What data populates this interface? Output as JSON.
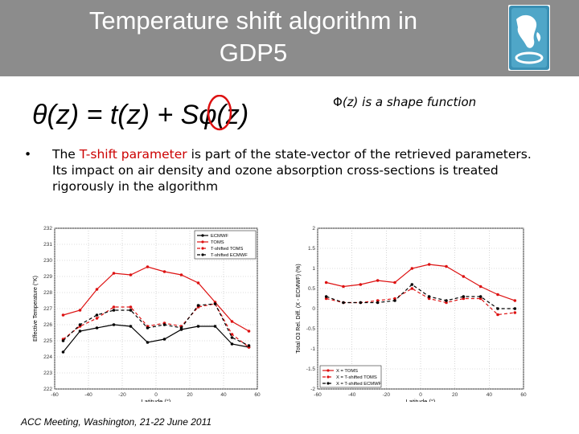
{
  "slide": {
    "title_line1": "Temperature shift algorithm in",
    "title_line2": "GDP5",
    "logo_icon": "globe-africa-logo-icon",
    "header_color": "#8c8c8c",
    "formula": "θ(z) = t(z) + Sφ(z)",
    "shape_note": "(z) is a shape function",
    "shape_note_symbol": "Φ",
    "bullet_prefix": "The ",
    "bullet_highlight": "T-shift parameter",
    "bullet_rest": " is part of the state-vector of the retrieved parameters. Its impact on air density and ozone absorption cross-sections is treated rigorously in the algorithm",
    "footer": "ACC Meeting, Washington, 21-22 June 2011"
  },
  "chart_data": [
    {
      "type": "line",
      "title": "",
      "xlabel": "Latitude (°)",
      "ylabel": "Effective Temperature (°K)",
      "xlim": [
        -60,
        60
      ],
      "ylim": [
        222,
        232
      ],
      "xticks": [
        -60,
        -40,
        -20,
        0,
        20,
        40,
        60
      ],
      "yticks": [
        222,
        223,
        224,
        225,
        226,
        227,
        228,
        229,
        230,
        231,
        232
      ],
      "legend_position": "top-right",
      "series": [
        {
          "name": "ECMWF",
          "color": "#000000",
          "dash": "",
          "x": [
            -55,
            -45,
            -35,
            -25,
            -15,
            -5,
            5,
            15,
            25,
            35,
            45,
            55
          ],
          "y": [
            224.3,
            225.6,
            225.8,
            226.0,
            225.9,
            224.9,
            225.1,
            225.7,
            225.9,
            225.9,
            224.8,
            224.6
          ]
        },
        {
          "name": "TOMS",
          "color": "#dd1111",
          "dash": "",
          "x": [
            -55,
            -45,
            -35,
            -25,
            -15,
            -5,
            5,
            15,
            25,
            35,
            45,
            55
          ],
          "y": [
            226.6,
            226.9,
            228.2,
            229.2,
            229.1,
            229.6,
            229.3,
            229.1,
            228.6,
            227.4,
            226.2,
            225.6
          ]
        },
        {
          "name": "T-shifted TOMS",
          "color": "#dd1111",
          "dash": "4,3",
          "x": [
            -55,
            -45,
            -35,
            -25,
            -15,
            -5,
            5,
            15,
            25,
            35,
            45,
            55
          ],
          "y": [
            225.1,
            225.9,
            226.4,
            227.1,
            227.1,
            225.9,
            226.1,
            225.9,
            227.1,
            227.3,
            225.4,
            224.6
          ]
        },
        {
          "name": "T-shifted ECMWF",
          "color": "#000000",
          "dash": "4,3",
          "x": [
            -55,
            -45,
            -35,
            -25,
            -15,
            -5,
            5,
            15,
            25,
            35,
            45,
            55
          ],
          "y": [
            225.0,
            226.0,
            226.6,
            226.9,
            226.9,
            225.8,
            226.0,
            225.8,
            227.2,
            227.3,
            225.2,
            224.7
          ]
        }
      ]
    },
    {
      "type": "line",
      "title": "",
      "xlabel": "Latitude (°)",
      "ylabel": "Total O3 Rel. Diff. (X - ECMWF) (%)",
      "xlim": [
        -60,
        60
      ],
      "ylim": [
        -2,
        2
      ],
      "xticks": [
        -60,
        -40,
        -20,
        0,
        20,
        40,
        60
      ],
      "yticks": [
        -2,
        -1.5,
        -1,
        -0.5,
        0,
        0.5,
        1,
        1.5,
        2
      ],
      "legend_position": "bottom-left",
      "series": [
        {
          "name": "X = TOMS",
          "color": "#dd1111",
          "dash": "",
          "x": [
            -55,
            -45,
            -35,
            -25,
            -15,
            -5,
            5,
            15,
            25,
            35,
            45,
            55
          ],
          "y": [
            0.65,
            0.55,
            0.6,
            0.7,
            0.65,
            1.0,
            1.1,
            1.05,
            0.8,
            0.55,
            0.35,
            0.2
          ]
        },
        {
          "name": "X = T-shifted TOMS",
          "color": "#dd1111",
          "dash": "4,3",
          "x": [
            -55,
            -45,
            -35,
            -25,
            -15,
            -5,
            5,
            15,
            25,
            35,
            45,
            55
          ],
          "y": [
            0.25,
            0.15,
            0.15,
            0.2,
            0.25,
            0.5,
            0.25,
            0.15,
            0.25,
            0.25,
            -0.15,
            -0.1
          ]
        },
        {
          "name": "X = T-shifted ECMWF",
          "color": "#000000",
          "dash": "4,3",
          "x": [
            -55,
            -45,
            -35,
            -25,
            -15,
            -5,
            5,
            15,
            25,
            35,
            45,
            55
          ],
          "y": [
            0.3,
            0.15,
            0.15,
            0.15,
            0.2,
            0.6,
            0.3,
            0.2,
            0.3,
            0.3,
            0.0,
            0.0
          ]
        }
      ]
    }
  ]
}
